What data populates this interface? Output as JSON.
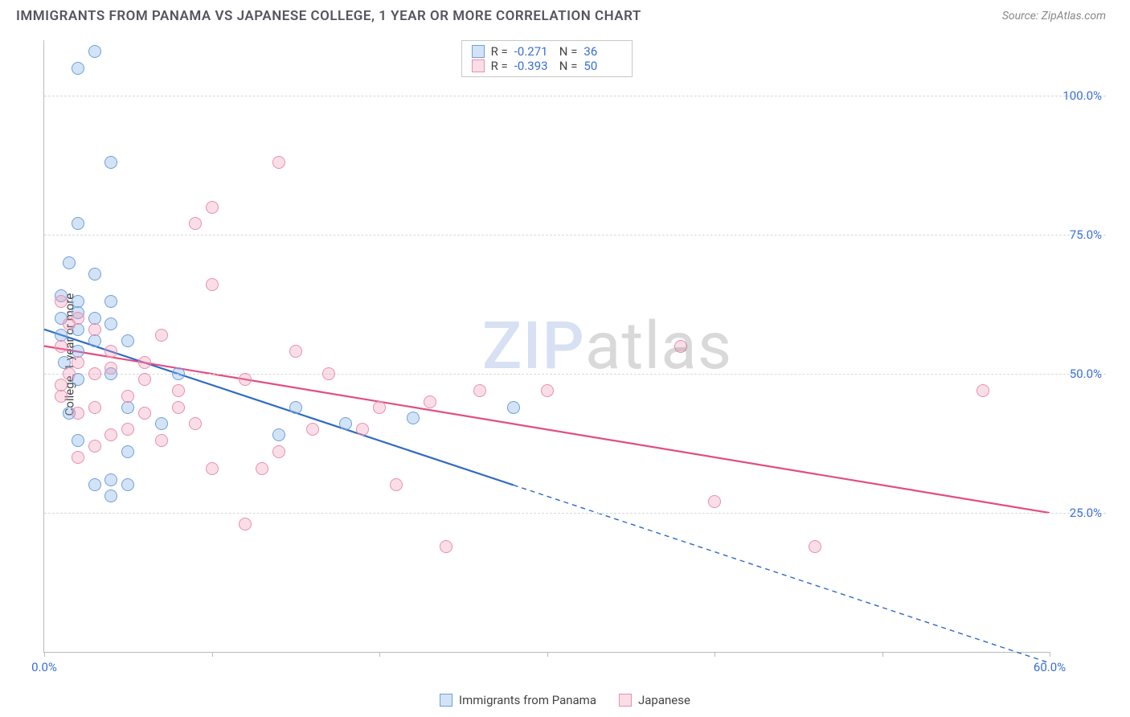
{
  "header": {
    "title": "IMMIGRANTS FROM PANAMA VS JAPANESE COLLEGE, 1 YEAR OR MORE CORRELATION CHART",
    "source_label": "Source:",
    "source_name": "ZipAtlas.com"
  },
  "chart": {
    "type": "scatter",
    "ylabel": "College, 1 year or more",
    "background_color": "#ffffff",
    "grid_color": "#d8d8d8",
    "axis_color": "#bbbbbb",
    "label_color": "#3b6fd6",
    "text_color": "#444444",
    "xlim": [
      0,
      60
    ],
    "ylim": [
      0,
      110
    ],
    "xtick_positions": [
      0,
      10,
      20,
      30,
      40,
      50,
      60
    ],
    "xtick_labels": {
      "0": "0.0%",
      "60": "60.0%"
    },
    "ytick_positions": [
      25,
      50,
      75,
      100
    ],
    "ytick_labels": {
      "25": "25.0%",
      "50": "50.0%",
      "75": "75.0%",
      "100": "100.0%"
    },
    "marker_radius": 8,
    "marker_stroke_width": 1.2,
    "line_width": 2.2,
    "series": [
      {
        "key": "panama",
        "name": "Immigrants from Panama",
        "fill_color": "rgba(130,175,230,0.35)",
        "stroke_color": "#6da0db",
        "line_color": "#2d6bc4",
        "R": "-0.271",
        "N": "36",
        "trend": {
          "x1": 0,
          "y1": 58,
          "x2": 28,
          "y2": 30,
          "ext_x2": 60,
          "ext_y2": -2
        },
        "points": [
          [
            3,
            108
          ],
          [
            2,
            105
          ],
          [
            4,
            88
          ],
          [
            2,
            77
          ],
          [
            1.5,
            70
          ],
          [
            3,
            68
          ],
          [
            1,
            64
          ],
          [
            2,
            63
          ],
          [
            4,
            63
          ],
          [
            2,
            61
          ],
          [
            3,
            60
          ],
          [
            1,
            60
          ],
          [
            4,
            59
          ],
          [
            2,
            58
          ],
          [
            1,
            57
          ],
          [
            3,
            56
          ],
          [
            5,
            56
          ],
          [
            2,
            54
          ],
          [
            1.2,
            52
          ],
          [
            4,
            50
          ],
          [
            8,
            50
          ],
          [
            2,
            49
          ],
          [
            5,
            44
          ],
          [
            1.5,
            43
          ],
          [
            15,
            44
          ],
          [
            7,
            41
          ],
          [
            2,
            38
          ],
          [
            18,
            41
          ],
          [
            5,
            36
          ],
          [
            3,
            30
          ],
          [
            4,
            31
          ],
          [
            5,
            30
          ],
          [
            4,
            28
          ],
          [
            22,
            42
          ],
          [
            14,
            39
          ],
          [
            28,
            44
          ]
        ]
      },
      {
        "key": "japanese",
        "name": "Japanese",
        "fill_color": "rgba(240,145,175,0.30)",
        "stroke_color": "#e88fad",
        "line_color": "#e24d81",
        "R": "-0.393",
        "N": "50",
        "trend": {
          "x1": 0,
          "y1": 55,
          "x2": 60,
          "y2": 25
        },
        "points": [
          [
            14,
            88
          ],
          [
            10,
            80
          ],
          [
            9,
            77
          ],
          [
            1,
            63
          ],
          [
            2,
            60
          ],
          [
            1.5,
            59
          ],
          [
            3,
            58
          ],
          [
            1,
            55
          ],
          [
            10,
            66
          ],
          [
            7,
            57
          ],
          [
            2,
            52
          ],
          [
            4,
            51
          ],
          [
            3,
            50
          ],
          [
            6,
            49
          ],
          [
            1,
            48
          ],
          [
            15,
            54
          ],
          [
            5,
            46
          ],
          [
            8,
            47
          ],
          [
            3,
            44
          ],
          [
            2,
            43
          ],
          [
            6,
            43
          ],
          [
            9,
            41
          ],
          [
            12,
            49
          ],
          [
            17,
            50
          ],
          [
            20,
            44
          ],
          [
            4,
            39
          ],
          [
            7,
            38
          ],
          [
            16,
            40
          ],
          [
            14,
            36
          ],
          [
            10,
            33
          ],
          [
            26,
            47
          ],
          [
            30,
            47
          ],
          [
            38,
            55
          ],
          [
            23,
            45
          ],
          [
            19,
            40
          ],
          [
            13,
            33
          ],
          [
            21,
            30
          ],
          [
            24,
            19
          ],
          [
            12,
            23
          ],
          [
            46,
            19
          ],
          [
            40,
            27
          ],
          [
            56,
            47
          ],
          [
            5,
            40
          ],
          [
            3,
            37
          ],
          [
            2,
            35
          ],
          [
            1.5,
            50
          ],
          [
            1,
            46
          ],
          [
            4,
            54
          ],
          [
            6,
            52
          ],
          [
            8,
            44
          ]
        ]
      }
    ],
    "legend_top_labels": {
      "R": "R =",
      "N": "N ="
    },
    "watermark": {
      "part1": "ZIP",
      "part2": "atlas"
    }
  }
}
